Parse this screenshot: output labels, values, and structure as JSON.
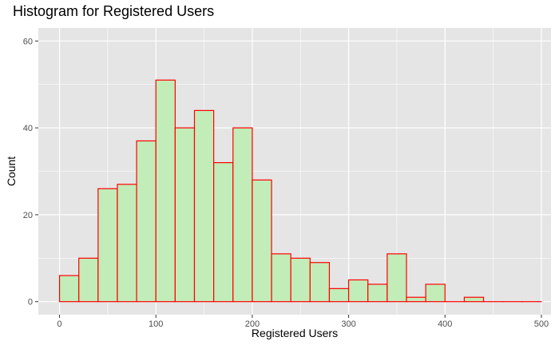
{
  "chart_data": {
    "type": "bar",
    "title": "Histogram for Registered Users",
    "xlabel": "Registered Users",
    "ylabel": "Count",
    "xlim": [
      -22,
      510
    ],
    "ylim": [
      -3,
      63
    ],
    "x_ticks": [
      0,
      100,
      200,
      300,
      400,
      500
    ],
    "y_ticks": [
      0,
      20,
      40,
      60
    ],
    "bin_width": 20,
    "bin_starts": [
      0,
      20,
      40,
      60,
      80,
      100,
      120,
      140,
      160,
      180,
      200,
      220,
      240,
      260,
      280,
      300,
      320,
      340,
      360,
      380,
      400,
      420,
      440,
      460,
      480
    ],
    "counts": [
      6,
      10,
      26,
      27,
      37,
      51,
      40,
      44,
      32,
      40,
      28,
      11,
      10,
      9,
      3,
      5,
      4,
      11,
      1,
      4,
      0,
      1,
      0,
      0,
      0
    ],
    "grid": true,
    "colors": {
      "fill": "#c2ecb8",
      "stroke": "#ff0000",
      "panel": "#e5e5e5",
      "grid": "#ffffff"
    }
  }
}
